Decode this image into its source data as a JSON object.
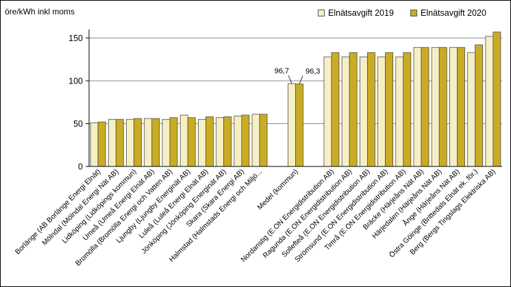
{
  "chart_data": {
    "type": "bar",
    "ylabel": "öre/kWh inkl moms",
    "ylim": [
      0,
      160
    ],
    "yticks": [
      0,
      50,
      100,
      150
    ],
    "grid": true,
    "legend_position": "top-right",
    "categories": [
      "Borlänge (AB Borlänge Energi Elnät)",
      "Mölndal (Mölndal Energi Nät AB)",
      "Lidköping (Lidköpings kommun)",
      "Umeå (Umeå Energi Elnät AB)",
      "Bromölla (Bromölla Energi och Vatten AB)",
      "Ljungby (Ljungby Energinät AB)",
      "Luleå (Luleå Energi Elnät AB)",
      "Jönköping (Jönköping Energinät AB)",
      "Skara (Skara Energi AB)",
      "Halmstad (Halmstads Energi och Miljö...",
      "",
      "Medel (kommun)",
      "",
      "Nordanstig (E.ON Energidistribution AB)",
      "Ragunda (E.ON Energidistribution AB)",
      "Sollefteå (E.ON Energidistribution AB)",
      "Strömsund (E.ON Energidistribution AB)",
      "Timrå (E.ON Energidistribution AB)",
      "Bräcke (Härjeåns Nät AB)",
      "Härjedalen (Härjeåns Nät AB)",
      "Ånge (Härjeåns Nät AB)",
      "Östra Göinge (Brittedals Elnät ek. för.)",
      "Berg (Bergs Tingslags Elektriska AB)"
    ],
    "series": [
      {
        "name": "Elnätsavgift 2019",
        "color": "#f7efc4",
        "values": [
          51,
          55,
          55,
          56,
          55,
          60,
          55,
          57,
          59,
          61,
          null,
          96.7,
          null,
          128,
          128,
          128,
          128,
          128,
          139,
          139,
          139,
          133,
          152
        ]
      },
      {
        "name": "Elnätsavgift 2020",
        "color": "#c9ac24",
        "values": [
          52,
          55,
          56,
          56,
          57,
          57,
          58,
          58,
          60,
          61,
          null,
          96.3,
          null,
          133,
          133,
          133,
          133,
          133,
          139,
          139,
          139,
          142,
          157
        ]
      }
    ],
    "annotations": [
      {
        "text": "96,7",
        "series": 0,
        "category": 11
      },
      {
        "text": "96,3",
        "series": 1,
        "category": 11
      }
    ]
  }
}
